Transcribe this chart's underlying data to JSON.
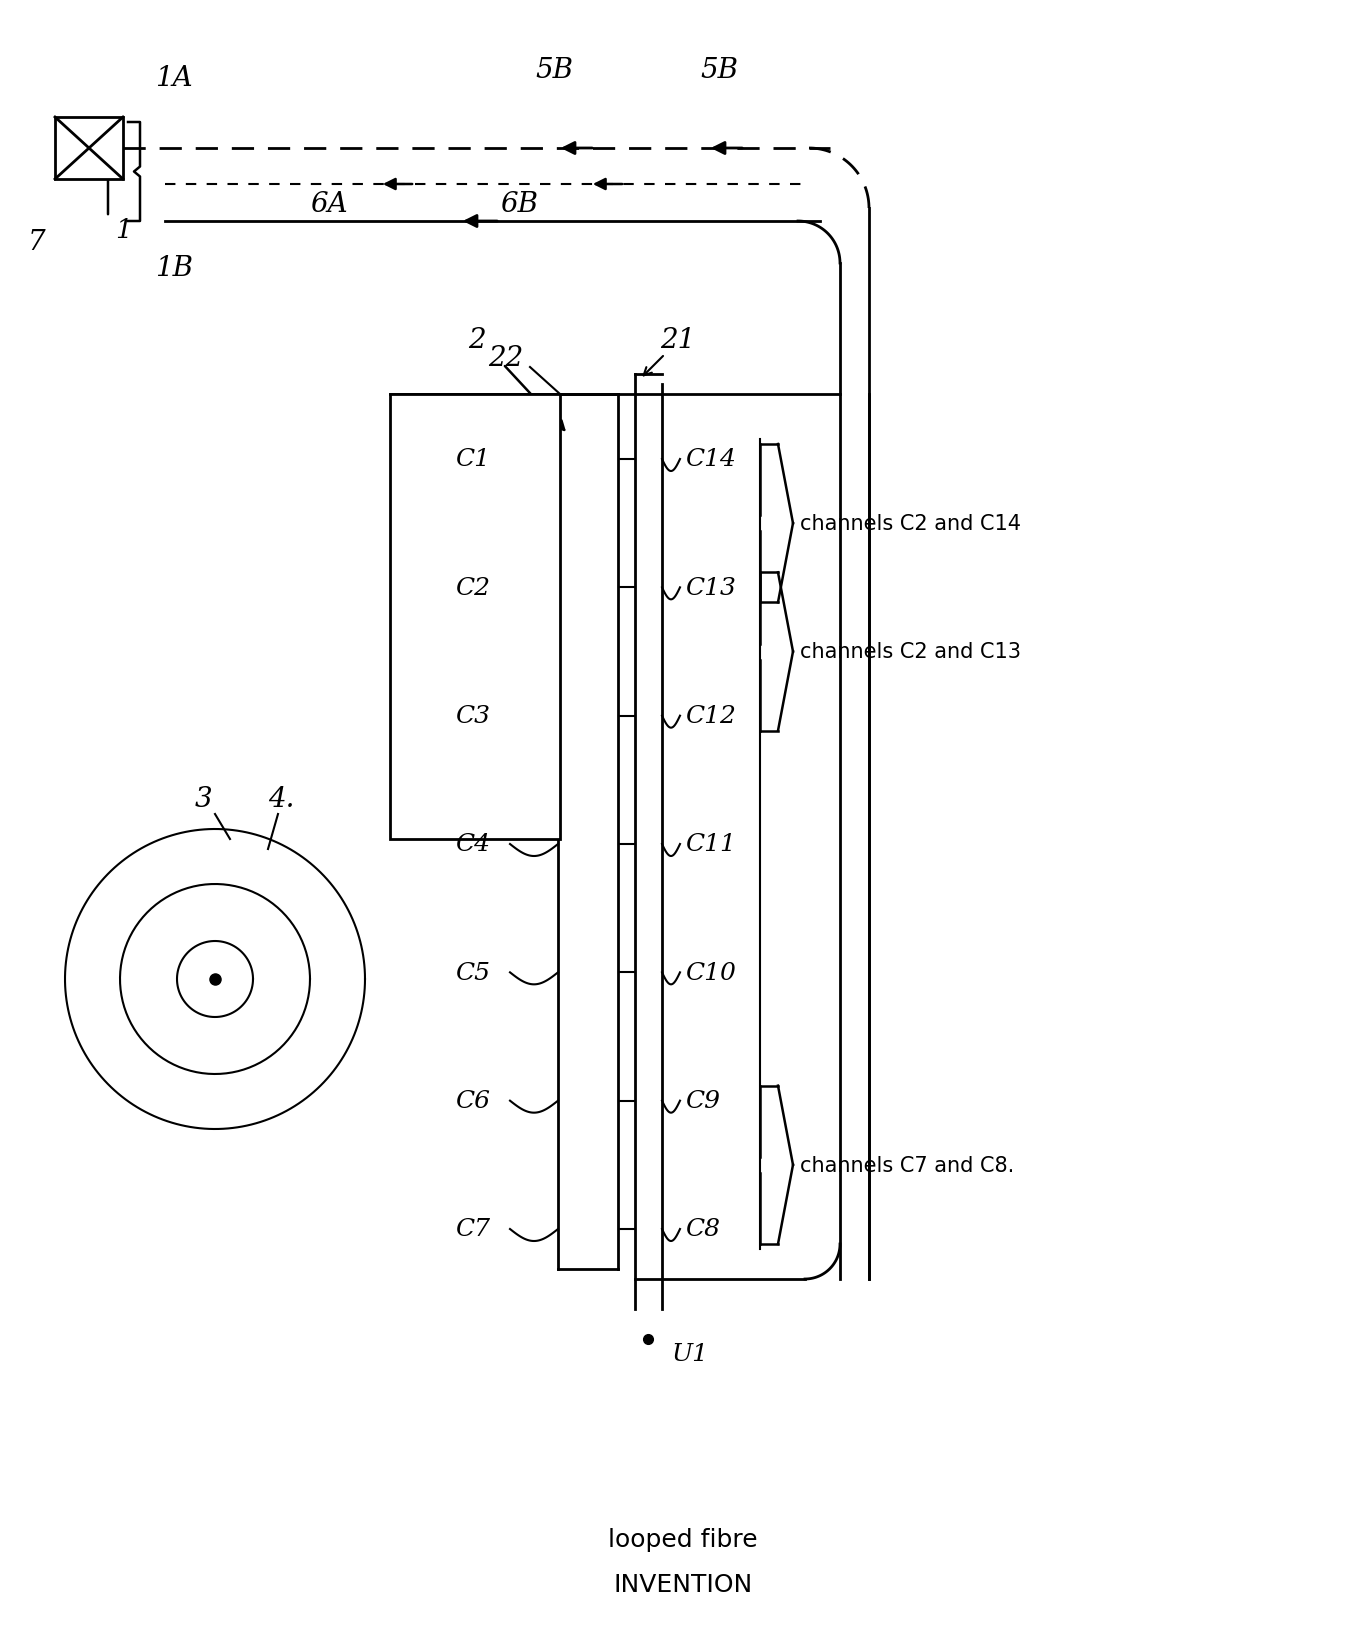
{
  "bg_color": "#ffffff",
  "line_color": "#000000",
  "title_line1": "looped fibre",
  "title_line2": "INVENTION",
  "channels_left": [
    "C1",
    "C2",
    "C3",
    "C4",
    "C5",
    "C6",
    "C7"
  ],
  "channels_right": [
    "C14",
    "C13",
    "C12",
    "C11",
    "C10",
    "C9",
    "C8"
  ],
  "brace1_text": "channels C2 and C14",
  "brace2_text": "channels C2 and C13",
  "brace3_text": "channels C7 and C8.",
  "label_1A": "1A",
  "label_1B": "1B",
  "label_5B_1": "5B",
  "label_5B_2": "5B",
  "label_6A": "6A",
  "label_6B": "6B",
  "label_1": "1",
  "label_7": "7",
  "label_2": "2",
  "label_21": "21",
  "label_22": "22",
  "label_3": "3",
  "label_4": "4.",
  "label_U1": "U1"
}
